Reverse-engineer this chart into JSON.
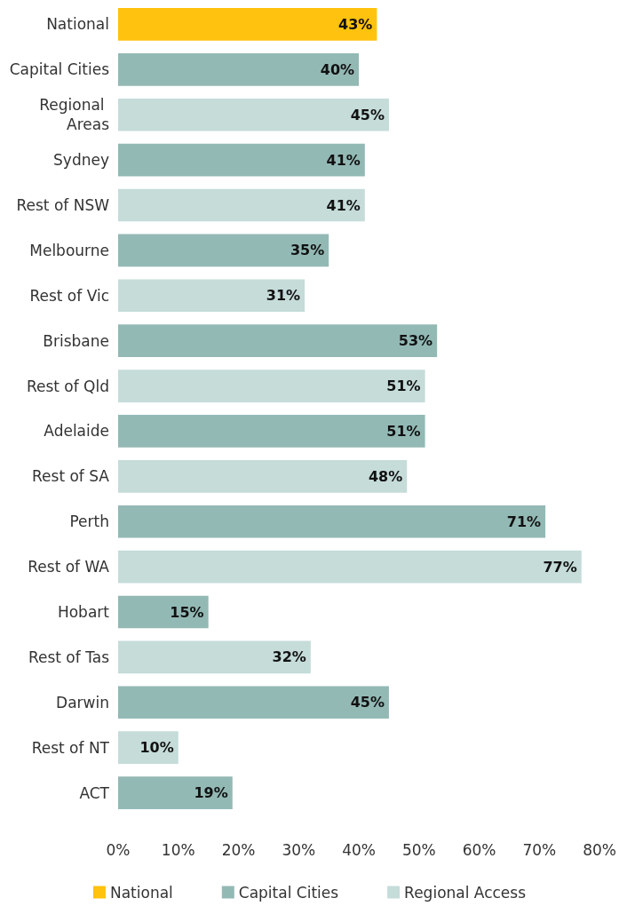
{
  "chart_data": {
    "type": "bar",
    "orientation": "horizontal",
    "stacked": true,
    "legend": "bottom",
    "grid": false,
    "categories": [
      "National",
      "Capital Cities",
      "Regional Areas",
      "Sydney",
      "Rest of NSW",
      "Melbourne",
      "Rest of Vic",
      "Brisbane",
      "Rest of Qld",
      "Adelaide",
      "Rest of SA",
      "Perth",
      "Rest of WA",
      "Hobart",
      "Rest of Tas",
      "Darwin",
      "Rest of NT",
      "ACT"
    ],
    "xlim": [
      0,
      80
    ],
    "xticks": [
      {
        "value": 0,
        "label": "0%"
      },
      {
        "value": 10,
        "label": "10%"
      },
      {
        "value": 20,
        "label": "20%"
      },
      {
        "value": 30,
        "label": "30%"
      },
      {
        "value": 40,
        "label": "40%"
      },
      {
        "value": 50,
        "label": "50%"
      },
      {
        "value": 60,
        "label": "60%"
      },
      {
        "value": 70,
        "label": "70%"
      },
      {
        "value": 80,
        "label": "80%"
      }
    ],
    "series": [
      {
        "name": "National",
        "color": "#ffc20e",
        "values": [
          43,
          null,
          null,
          null,
          null,
          null,
          null,
          null,
          null,
          null,
          null,
          null,
          null,
          null,
          null,
          null,
          null,
          null
        ],
        "value_labels": [
          "43%",
          null,
          null,
          null,
          null,
          null,
          null,
          null,
          null,
          null,
          null,
          null,
          null,
          null,
          null,
          null,
          null,
          null
        ]
      },
      {
        "name": "Capital Cities",
        "color": "#93b9b5",
        "values": [
          null,
          40,
          null,
          41,
          null,
          35,
          null,
          53,
          null,
          51,
          null,
          71,
          null,
          15,
          null,
          45,
          null,
          19
        ],
        "value_labels": [
          null,
          "40%",
          null,
          "41%",
          null,
          "35%",
          null,
          "53%",
          null,
          "51%",
          null,
          "71%",
          null,
          "15%",
          null,
          "45%",
          null,
          "19%"
        ]
      },
      {
        "name": "Regional Access",
        "color": "#c5dcd9",
        "values": [
          null,
          null,
          45,
          null,
          41,
          null,
          31,
          null,
          51,
          null,
          48,
          null,
          77,
          null,
          32,
          null,
          10,
          null
        ],
        "value_labels": [
          null,
          null,
          "45%",
          null,
          "41%",
          null,
          "31%",
          null,
          "51%",
          null,
          "48%",
          null,
          "77%",
          null,
          "32%",
          null,
          "10%",
          null
        ]
      }
    ]
  }
}
